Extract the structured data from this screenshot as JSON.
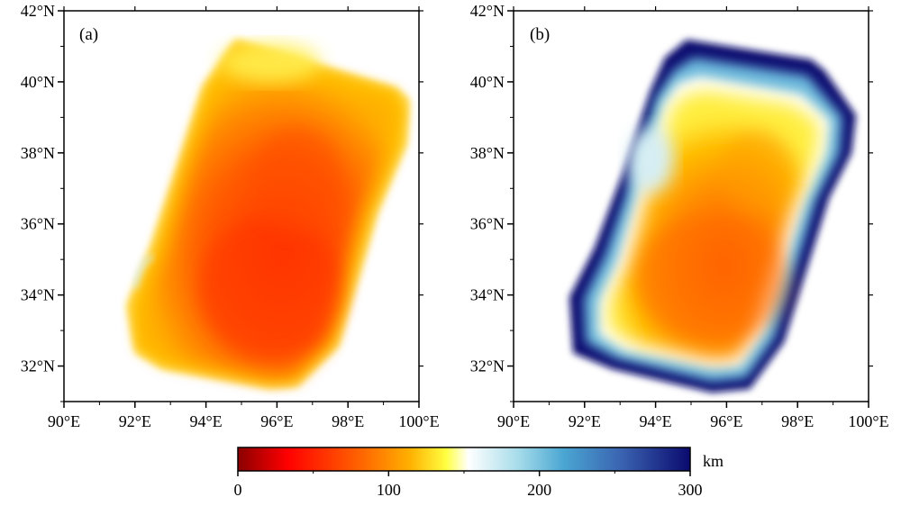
{
  "figure": {
    "units": "km",
    "panels": [
      {
        "label": "(a)",
        "lon_range": [
          90,
          100
        ],
        "lat_range": [
          31,
          42
        ],
        "x_ticks": [
          "90°E",
          "92°E",
          "94°E",
          "96°E",
          "98°E",
          "100°E"
        ],
        "y_ticks": [
          "32°N",
          "34°N",
          "36°N",
          "38°N",
          "40°N",
          "42°N"
        ]
      },
      {
        "label": "(b)",
        "lon_range": [
          90,
          100
        ],
        "lat_range": [
          31,
          42
        ],
        "x_ticks": [
          "90°E",
          "92°E",
          "94°E",
          "96°E",
          "98°E",
          "100°E"
        ],
        "y_ticks": [
          "32°N",
          "34°N",
          "36°N",
          "38°N",
          "40°N",
          "42°N"
        ]
      }
    ],
    "colorbar": {
      "min": 0,
      "max": 300,
      "tick_labels": [
        "0",
        "100",
        "200",
        "300"
      ],
      "unit_label": "km",
      "colors": [
        "#8b0000",
        "#ff0000",
        "#ff6a00",
        "#ffb000",
        "#ffff40",
        "#ffffff",
        "#a6dcea",
        "#4aa6d2",
        "#3a62b0",
        "#0a0a6e"
      ]
    }
  }
}
